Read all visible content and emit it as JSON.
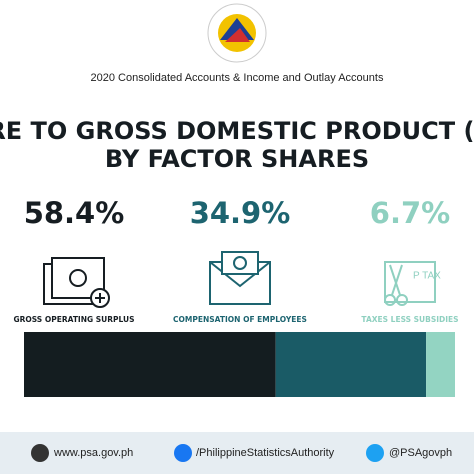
{
  "chart_data": {
    "type": "stacked-bar",
    "subtitle": "2020 Consolidated Accounts & Income and Outlay Accounts",
    "title": [
      "SHARE TO GROSS DOMESTIC PRODUCT (GDP)",
      "BY FACTOR SHARES"
    ],
    "categories": [
      "GROSS OPERATING SURPLUS",
      "COMPENSATION OF EMPLOYEES",
      "TAXES LESS SUBSIDIES"
    ],
    "values": [
      58.4,
      34.9,
      6.7
    ],
    "value_labels": [
      "58.4%",
      "34.9%",
      "6.7%"
    ],
    "text_colors": [
      "#161d22",
      "#1d6470",
      "#8fd0c0"
    ],
    "colors": [
      "#141d20",
      "#1a5b66",
      "#93d4c2"
    ]
  },
  "footer": {
    "website": "www.psa.gov.ph",
    "facebook": "/PhilippineStatisticsAuthority",
    "twitter": "@PSAgovph"
  }
}
